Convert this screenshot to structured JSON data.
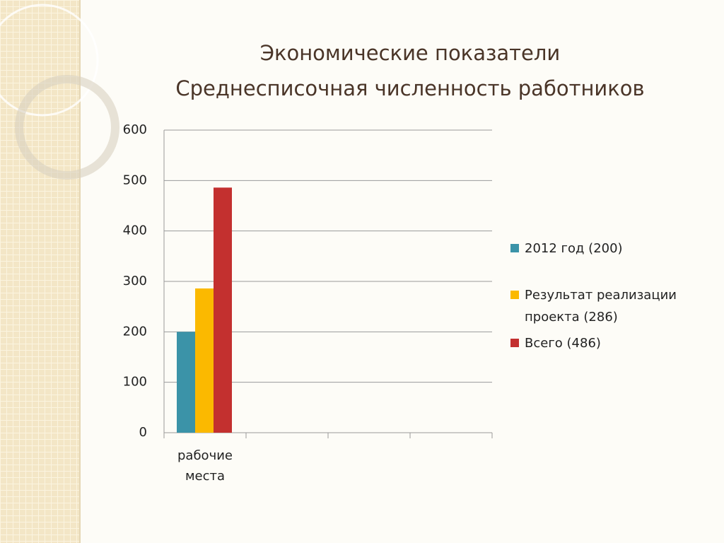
{
  "chart_data": {
    "type": "bar",
    "title": "Экономические показатели",
    "subtitle": "Среднесписочная численность работников",
    "categories": [
      "рабочие места",
      null,
      null,
      null
    ],
    "series": [
      {
        "name": "2012 год (200)",
        "color": "#3b93a8",
        "values": [
          200,
          null,
          null,
          null
        ]
      },
      {
        "name": "Результат реализации проекта (286)",
        "color": "#fbb900",
        "values": [
          286,
          null,
          null,
          null
        ]
      },
      {
        "name": "Всего (486)",
        "color": "#c3302f",
        "values": [
          486,
          null,
          null,
          null
        ]
      }
    ],
    "ylim": [
      0,
      600
    ],
    "yticks": [
      0,
      100,
      200,
      300,
      400,
      500,
      600
    ],
    "grid": true,
    "legend": "right"
  }
}
